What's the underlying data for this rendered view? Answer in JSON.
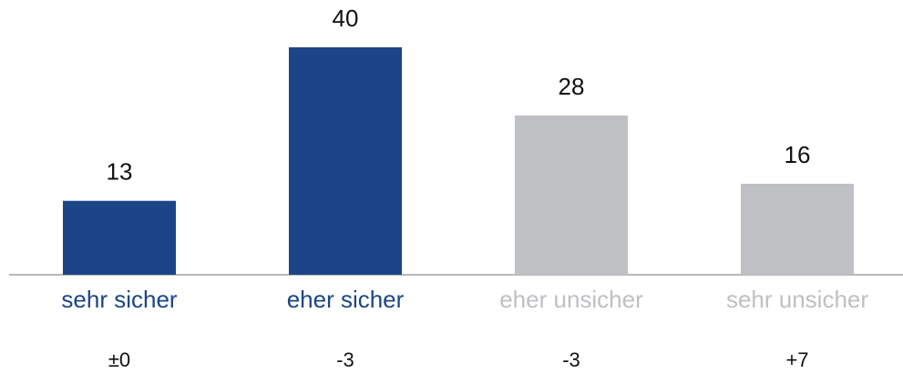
{
  "chart_data": {
    "type": "bar",
    "categories": [
      "sehr sicher",
      "eher sicher",
      "eher unsicher",
      "sehr unsicher"
    ],
    "values": [
      13,
      40,
      28,
      16
    ],
    "colors": [
      "#1c4587",
      "#1c4587",
      "#bfc0c3",
      "#bfc0c3"
    ],
    "changes": [
      "±0",
      "-3",
      "-3",
      "+7"
    ]
  }
}
